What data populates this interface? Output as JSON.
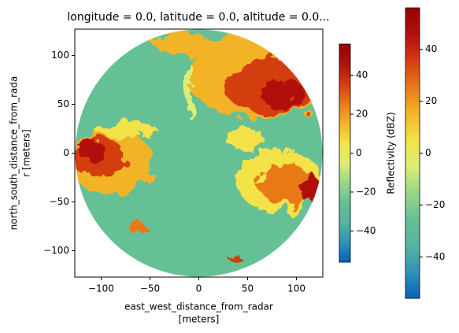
{
  "chart_data": {
    "type": "radar-image",
    "title": "longitude = 0.0, latitude = 0.0, altitude = 0.0...",
    "xlabel": [
      "east_west_distance_from_radar",
      "[meters]"
    ],
    "ylabel": [
      "north_south_distance_from_rada",
      "r [meters]"
    ],
    "xlim": [
      -127,
      127
    ],
    "ylim": [
      -127,
      127
    ],
    "xticks": [
      {
        "value": -100,
        "label": "−100"
      },
      {
        "value": -50,
        "label": "−50"
      },
      0,
      50,
      100
    ],
    "yticks": [
      {
        "value": -100,
        "label": "−100"
      },
      {
        "value": -50,
        "label": "−50"
      },
      0,
      50,
      100
    ],
    "colormap": [
      "#0a5fbe",
      "#2f93b8",
      "#56b4a0",
      "#66c096",
      "#9ad688",
      "#dcee74",
      "#f4e248",
      "#f2b428",
      "#e87a18",
      "#d43c10",
      "#b01010",
      "#9a0000"
    ],
    "colorbars": [
      {
        "label": "Reflectivity (dBZ)",
        "lim": [
          -56,
          56
        ],
        "ticks": [
          {
            "value": -40,
            "label": "−40"
          },
          {
            "value": -20,
            "label": "−20"
          },
          0,
          20,
          40
        ]
      },
      {
        "lim": [
          -56,
          56
        ],
        "ticks": [
          {
            "value": -40,
            "label": "−40"
          },
          {
            "value": -20,
            "label": "−20"
          },
          0,
          20,
          40
        ]
      }
    ]
  }
}
